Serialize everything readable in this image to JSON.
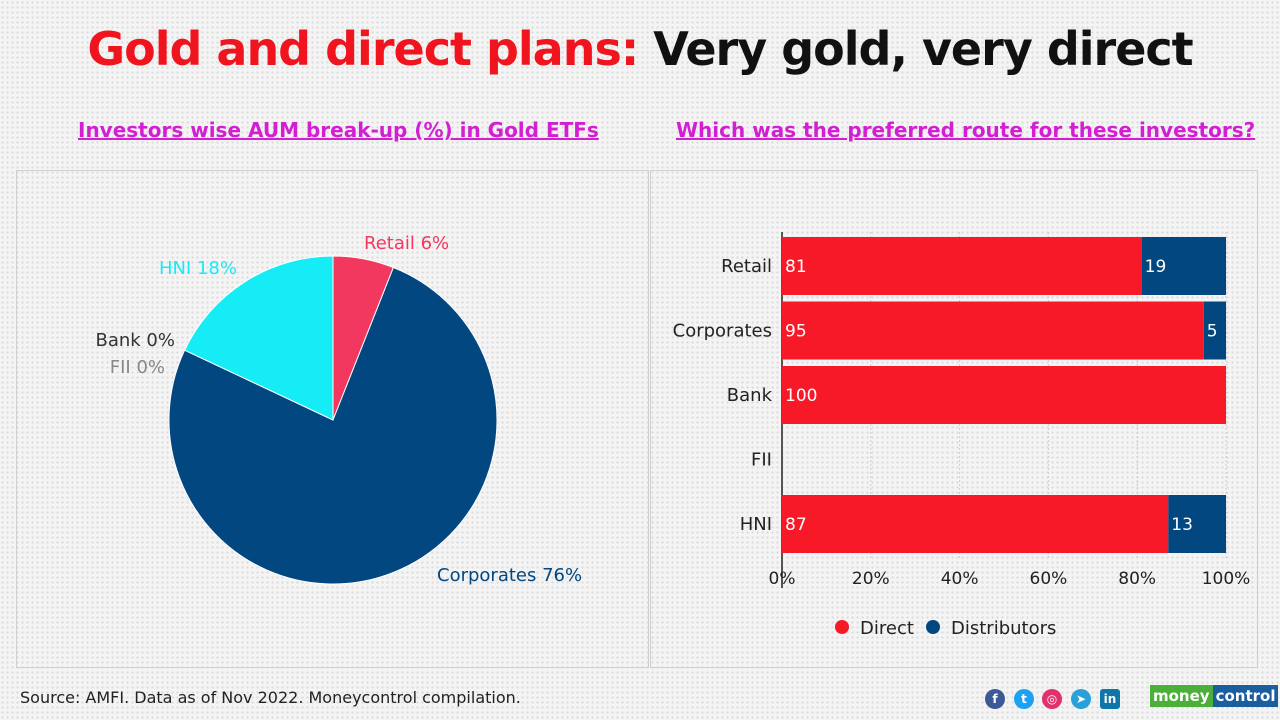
{
  "title": {
    "part1": "Gold and direct plans:",
    "part2": "Very gold, very direct"
  },
  "chart_data": [
    {
      "type": "pie",
      "title": "Investors wise AUM break-up (%) in Gold ETFs",
      "slices": [
        {
          "label": "Retail 6%",
          "value": 6,
          "color": "#f2385f"
        },
        {
          "label": "Corporates 76%",
          "value": 76,
          "color": "#024780"
        },
        {
          "label": "Bank 0%",
          "value": 0,
          "color": "#333333"
        },
        {
          "label": "FII 0%",
          "value": 0,
          "color": "#888888"
        },
        {
          "label": "HNI 18%",
          "value": 18,
          "color": "#16ecf6"
        }
      ]
    },
    {
      "type": "bar",
      "orientation": "horizontal",
      "stacked": true,
      "title": "Which was the preferred route for these investors?",
      "categories": [
        "Retail",
        "Corporates",
        "Bank",
        "FII",
        "HNI"
      ],
      "series": [
        {
          "name": "Direct",
          "color": "#f71927",
          "values": [
            81,
            95,
            100,
            null,
            87
          ]
        },
        {
          "name": "Distributors",
          "color": "#024780",
          "values": [
            19,
            5,
            0,
            null,
            13
          ]
        }
      ],
      "xlim": [
        0,
        100
      ],
      "xticks": [
        "0%",
        "20%",
        "40%",
        "60%",
        "80%",
        "100%"
      ],
      "grid": true,
      "legend": "bottom"
    }
  ],
  "footer": {
    "source": "Source: AMFI. Data as of Nov 2022. Moneycontrol compilation.",
    "social_icons": [
      "facebook-icon",
      "twitter-icon",
      "instagram-icon",
      "telegram-icon",
      "linkedin-icon"
    ],
    "logo": [
      "money",
      "control"
    ]
  }
}
